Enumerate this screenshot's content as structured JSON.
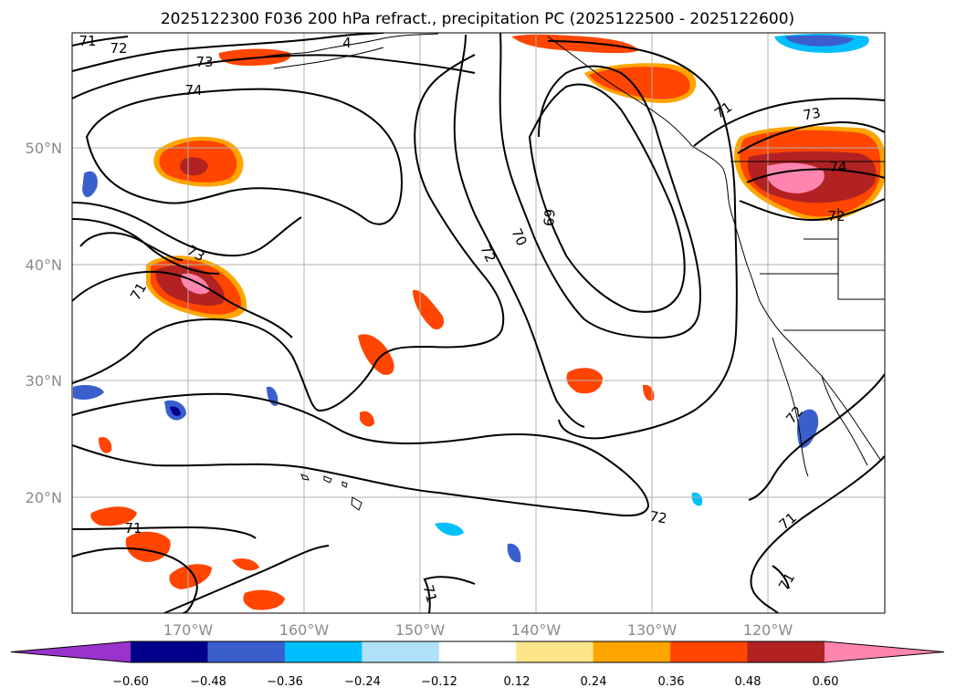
{
  "title": "2025122300 F036 200 hPa refract., precipitation PC (2025122500 - 2025122600)",
  "map": {
    "lat_labels": [
      "50°N",
      "40°N",
      "30°N",
      "20°N"
    ],
    "lon_labels": [
      "170°W",
      "160°W",
      "150°W",
      "140°W",
      "130°W",
      "120°W"
    ],
    "contour_labels": [
      "71",
      "72",
      "73",
      "74",
      "4",
      "71",
      "73",
      "74",
      "72",
      "73",
      "71",
      "72",
      "70",
      "69",
      "72",
      "71",
      "71",
      "71",
      "72",
      "71"
    ]
  },
  "colorbar": {
    "tick_labels": [
      "−0.60",
      "−0.48",
      "−0.36",
      "−0.24",
      "−0.12",
      "0.12",
      "0.24",
      "0.36",
      "0.48",
      "0.60"
    ],
    "colors": [
      "#9933cc",
      "#00008b",
      "#3a5fcd",
      "#00bfff",
      "#afe2fa",
      "#ffffff",
      "#ffe58a",
      "#ffa500",
      "#ff4500",
      "#b22222",
      "#ff85b0"
    ]
  }
}
